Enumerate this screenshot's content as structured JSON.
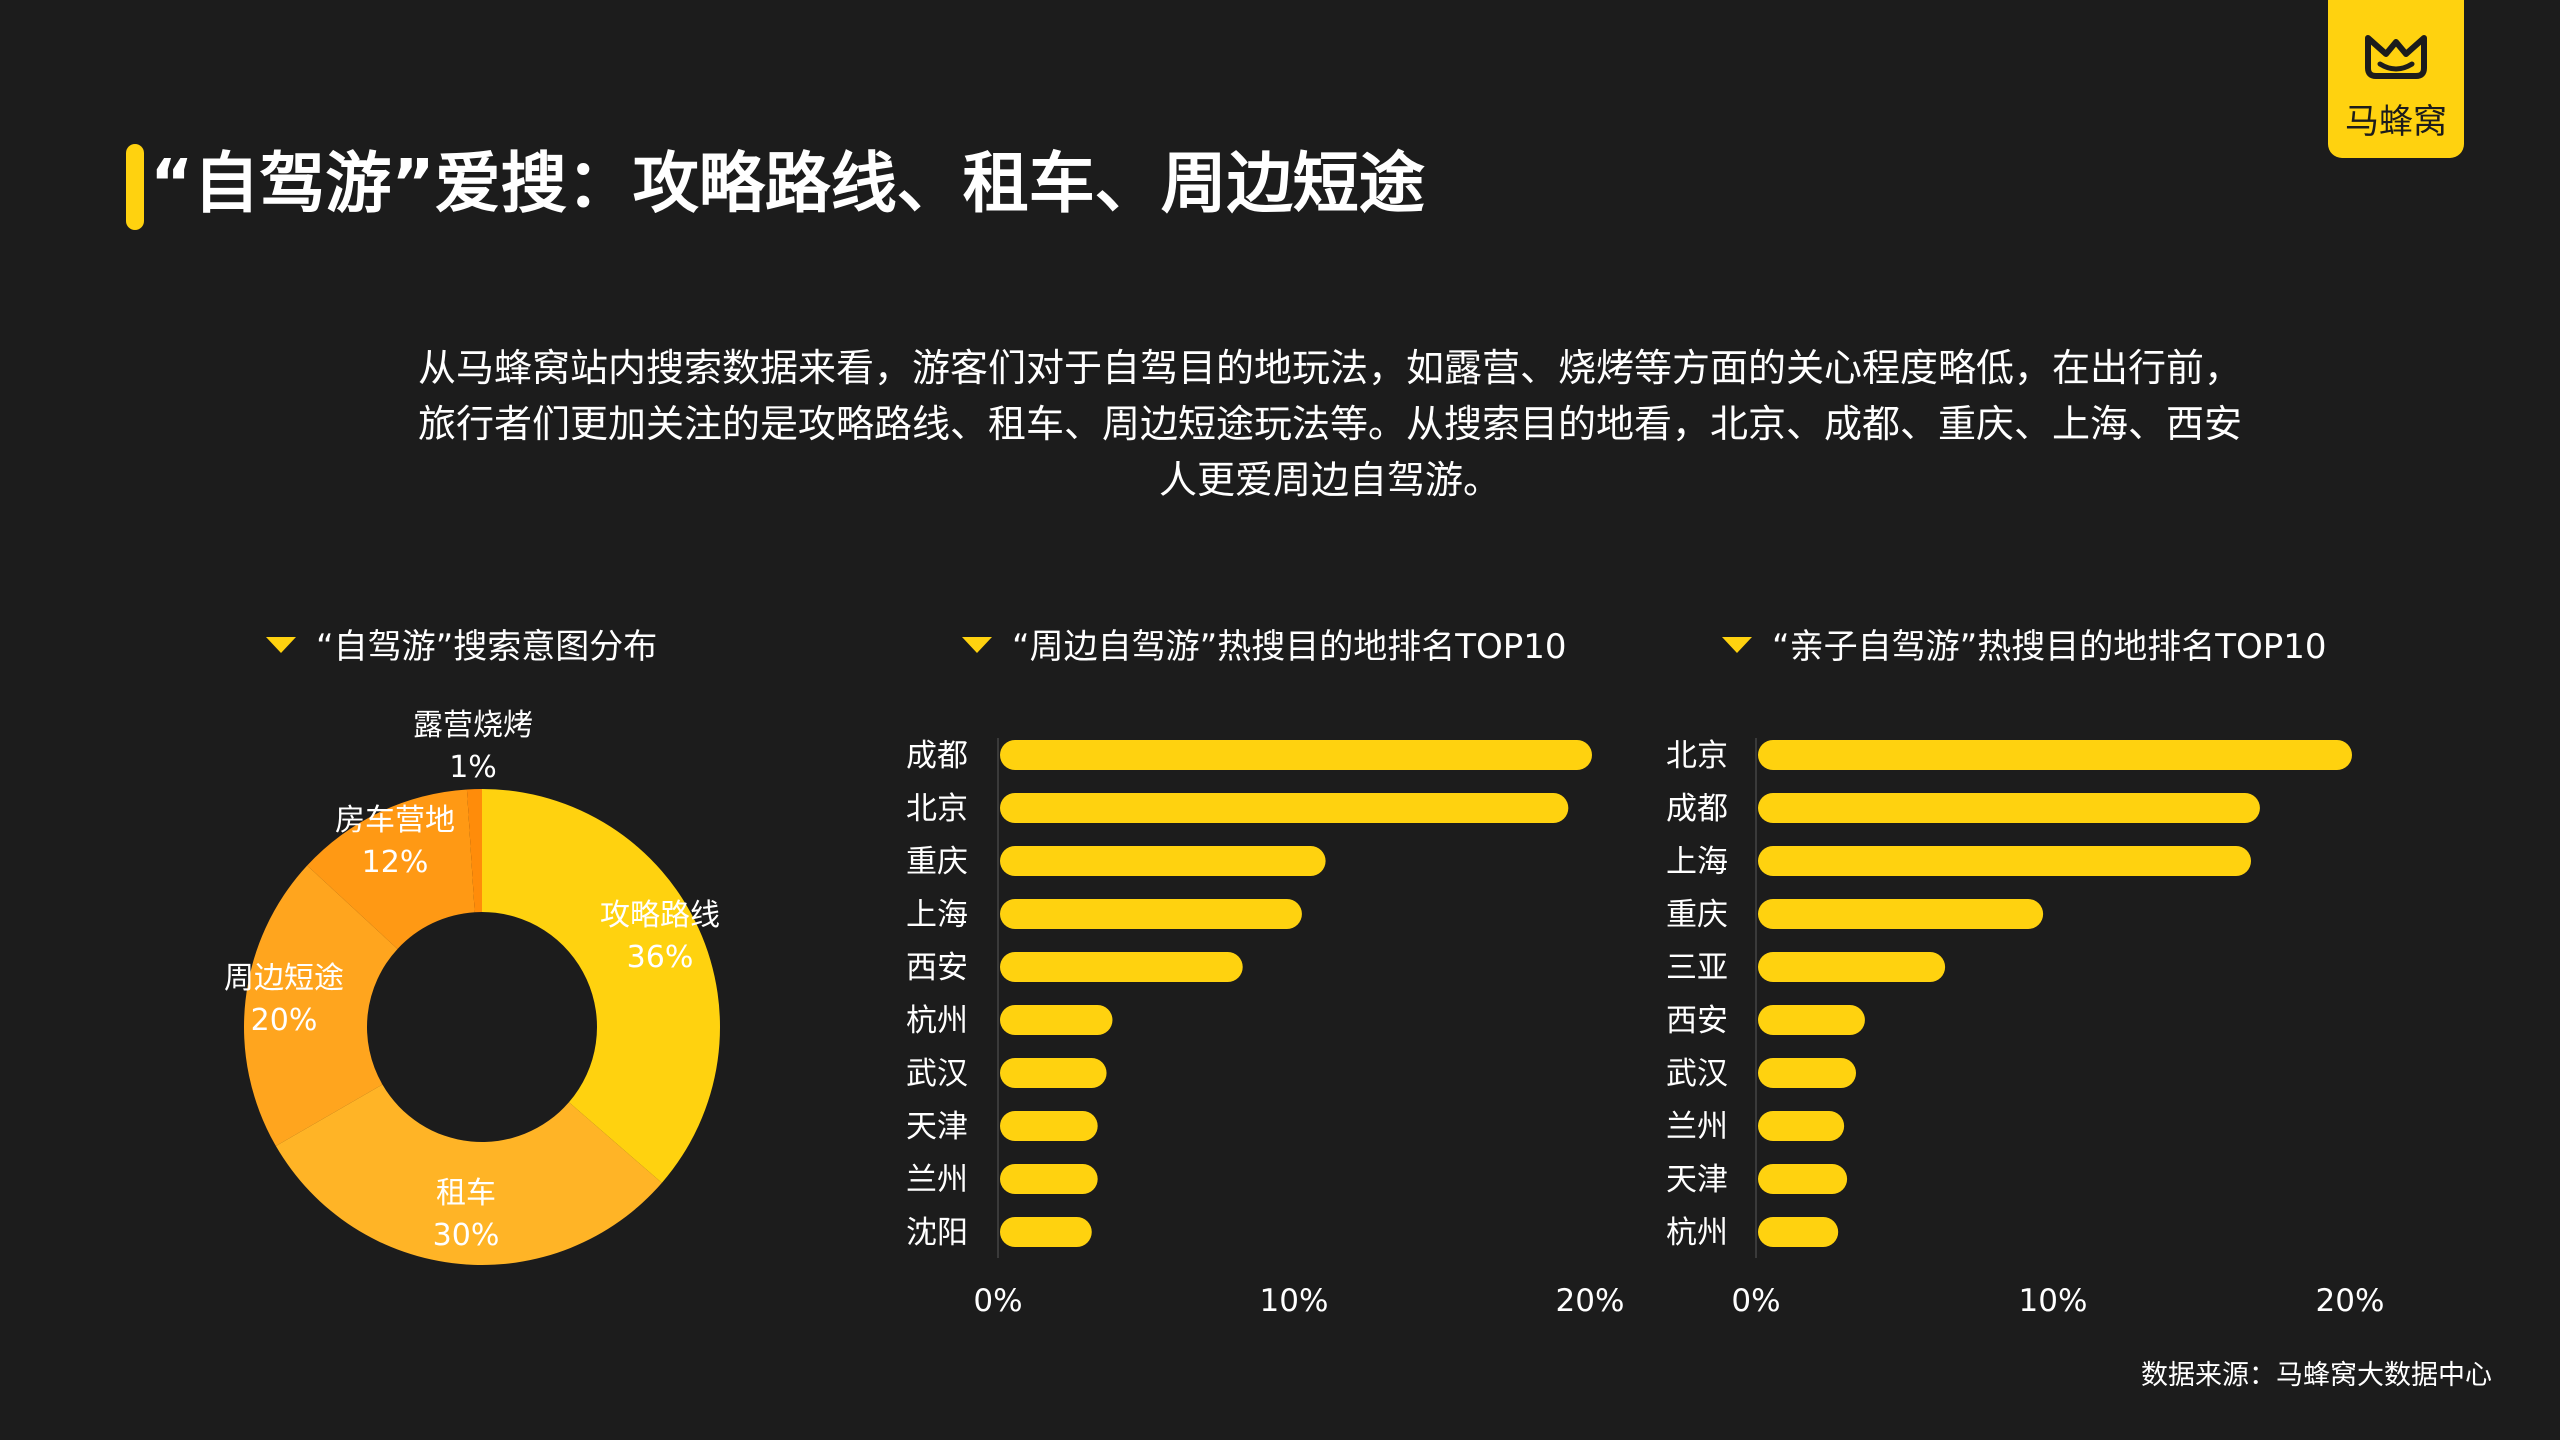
{
  "header": {
    "title": "“自驾游”爱搜：攻略路线、租车、周边短途"
  },
  "logo": {
    "text": "马蜂窝",
    "icon": "mafengwo-m-icon"
  },
  "intro": {
    "text": "从马蜂窝站内搜索数据来看，游客们对于自驾目的地玩法，如露营、烧烤等方面的关心程度略低，在出行前，旅行者们更加关注的是攻略路线、租车、周边短途玩法等。从搜索目的地看，北京、成都、重庆、上海、西安人更爱周边自驾游。"
  },
  "source": "数据来源：马蜂窝大数据中心",
  "colors": {
    "background": "#1c1c1c",
    "accent": "#ffd20f",
    "bar": "#ffd20f"
  },
  "chart_data": [
    {
      "type": "pie",
      "title": "“自驾游”搜索意图分布",
      "slices": [
        {
          "label": "攻略路线",
          "value": 36,
          "display": "36%",
          "color": "#ffd20f"
        },
        {
          "label": "租车",
          "value": 30,
          "display": "30%",
          "color": "#ffb426"
        },
        {
          "label": "周边短途",
          "value": 20,
          "display": "20%",
          "color": "#ffa51e"
        },
        {
          "label": "房车营地",
          "value": 12,
          "display": "12%",
          "color": "#ff9914"
        },
        {
          "label": "露营烧烤",
          "value": 1,
          "display": "1%",
          "color": "#ff8c0a"
        }
      ]
    },
    {
      "type": "bar",
      "orientation": "horizontal",
      "title": "“周边自驾游”热搜目的地排名TOP10",
      "categories": [
        "成都",
        "北京",
        "重庆",
        "上海",
        "西安",
        "杭州",
        "武汉",
        "天津",
        "兰州",
        "沈阳"
      ],
      "values": [
        20,
        19.2,
        11,
        10.2,
        8.2,
        3.8,
        3.6,
        3.3,
        3.3,
        3.1
      ],
      "xlim": [
        0,
        20
      ],
      "xticks": [
        "0%",
        "10%",
        "20%"
      ]
    },
    {
      "type": "bar",
      "orientation": "horizontal",
      "title": "“亲子自驾游”热搜目的地排名TOP10",
      "categories": [
        "北京",
        "成都",
        "上海",
        "重庆",
        "三亚",
        "西安",
        "武汉",
        "兰州",
        "天津",
        "杭州"
      ],
      "values": [
        20,
        16.9,
        16.6,
        9.6,
        6.3,
        3.6,
        3.3,
        2.9,
        3.0,
        2.7
      ],
      "xlim": [
        0,
        20
      ],
      "xticks": [
        "0%",
        "10%",
        "20%"
      ]
    }
  ]
}
